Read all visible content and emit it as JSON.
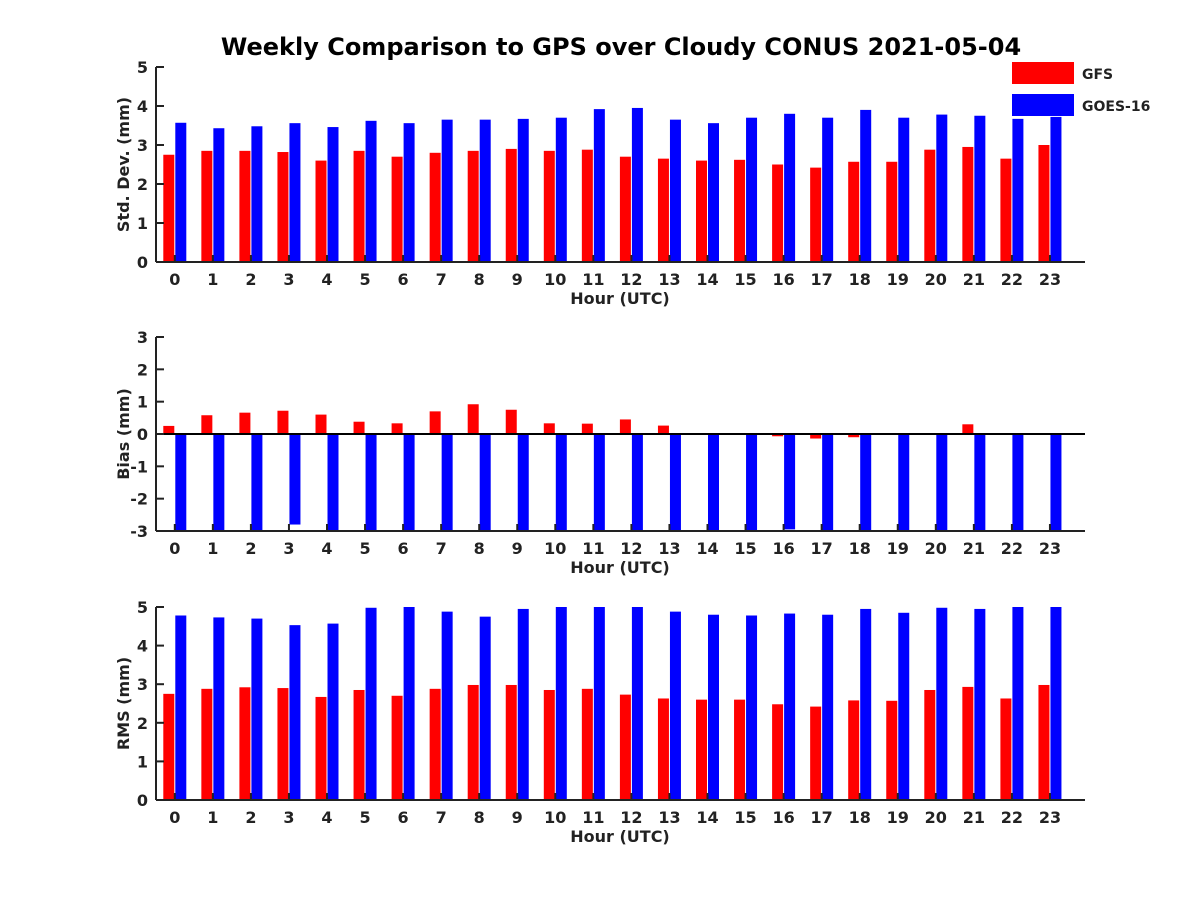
{
  "figure": {
    "title": "Weekly Comparison to GPS over Cloudy CONUS 2021-05-04"
  },
  "legend": {
    "placement": "top-right",
    "items": [
      {
        "label": "GFS",
        "color": "#ff0000"
      },
      {
        "label": "GOES-16",
        "color": "#0000ff"
      }
    ]
  },
  "chart_data": [
    {
      "type": "bar",
      "categories": [
        "0",
        "1",
        "2",
        "3",
        "4",
        "5",
        "6",
        "7",
        "8",
        "9",
        "10",
        "11",
        "12",
        "13",
        "14",
        "15",
        "16",
        "17",
        "18",
        "19",
        "20",
        "21",
        "22",
        "23"
      ],
      "xlabel": "Hour (UTC)",
      "ylabel": "Std. Dev. (mm)",
      "ylim": [
        0,
        5
      ],
      "yticks": [
        "0",
        "1",
        "2",
        "3",
        "4",
        "5"
      ],
      "grid": false,
      "series": [
        {
          "name": "GFS",
          "color": "#ff0000",
          "values": [
            2.75,
            2.85,
            2.85,
            2.82,
            2.6,
            2.85,
            2.7,
            2.8,
            2.85,
            2.9,
            2.85,
            2.88,
            2.7,
            2.65,
            2.6,
            2.62,
            2.5,
            2.42,
            2.57,
            2.57,
            2.88,
            2.95,
            2.65,
            3.0
          ]
        },
        {
          "name": "GOES-16",
          "color": "#0000ff",
          "values": [
            3.57,
            3.43,
            3.48,
            3.56,
            3.46,
            3.62,
            3.56,
            3.65,
            3.65,
            3.67,
            3.7,
            3.92,
            3.95,
            3.65,
            3.56,
            3.7,
            3.8,
            3.7,
            3.9,
            3.7,
            3.78,
            3.75,
            3.67,
            3.72
          ]
        }
      ]
    },
    {
      "type": "bar",
      "categories": [
        "0",
        "1",
        "2",
        "3",
        "4",
        "5",
        "6",
        "7",
        "8",
        "9",
        "10",
        "11",
        "12",
        "13",
        "14",
        "15",
        "16",
        "17",
        "18",
        "19",
        "20",
        "21",
        "22",
        "23"
      ],
      "xlabel": "Hour (UTC)",
      "ylabel": "Bias (mm)",
      "ylim": [
        -3,
        3
      ],
      "yticks": [
        "-3",
        "-2",
        "-1",
        "0",
        "1",
        "2",
        "3"
      ],
      "grid": false,
      "series": [
        {
          "name": "GFS",
          "color": "#ff0000",
          "values": [
            0.25,
            0.58,
            0.66,
            0.72,
            0.6,
            0.38,
            0.33,
            0.7,
            0.92,
            0.75,
            0.33,
            0.32,
            0.45,
            0.26,
            0.01,
            0.01,
            -0.07,
            -0.14,
            -0.1,
            0.03,
            0.03,
            0.3,
            0.01,
            0.01
          ]
        },
        {
          "name": "GOES-16",
          "color": "#0000ff",
          "values": [
            -3.0,
            -3.0,
            -3.0,
            -2.8,
            -3.0,
            -3.0,
            -3.0,
            -3.0,
            -3.0,
            -3.0,
            -3.0,
            -3.0,
            -3.0,
            -3.0,
            -3.0,
            -3.0,
            -2.95,
            -3.0,
            -3.0,
            -3.0,
            -3.0,
            -3.0,
            -3.0,
            -3.0
          ]
        }
      ]
    },
    {
      "type": "bar",
      "categories": [
        "0",
        "1",
        "2",
        "3",
        "4",
        "5",
        "6",
        "7",
        "8",
        "9",
        "10",
        "11",
        "12",
        "13",
        "14",
        "15",
        "16",
        "17",
        "18",
        "19",
        "20",
        "21",
        "22",
        "23"
      ],
      "xlabel": "Hour (UTC)",
      "ylabel": "RMS (mm)",
      "ylim": [
        0,
        5
      ],
      "yticks": [
        "0",
        "1",
        "2",
        "3",
        "4",
        "5"
      ],
      "grid": false,
      "series": [
        {
          "name": "GFS",
          "color": "#ff0000",
          "values": [
            2.75,
            2.88,
            2.92,
            2.9,
            2.67,
            2.85,
            2.7,
            2.88,
            2.98,
            2.98,
            2.85,
            2.88,
            2.73,
            2.63,
            2.6,
            2.6,
            2.48,
            2.42,
            2.58,
            2.57,
            2.85,
            2.93,
            2.63,
            2.98
          ]
        },
        {
          "name": "GOES-16",
          "color": "#0000ff",
          "values": [
            4.78,
            4.73,
            4.7,
            4.53,
            4.57,
            4.98,
            5.0,
            4.88,
            4.75,
            4.95,
            5.0,
            5.0,
            5.0,
            4.88,
            4.8,
            4.78,
            4.83,
            4.8,
            4.95,
            4.85,
            4.98,
            4.95,
            5.0,
            5.0
          ]
        }
      ]
    }
  ]
}
